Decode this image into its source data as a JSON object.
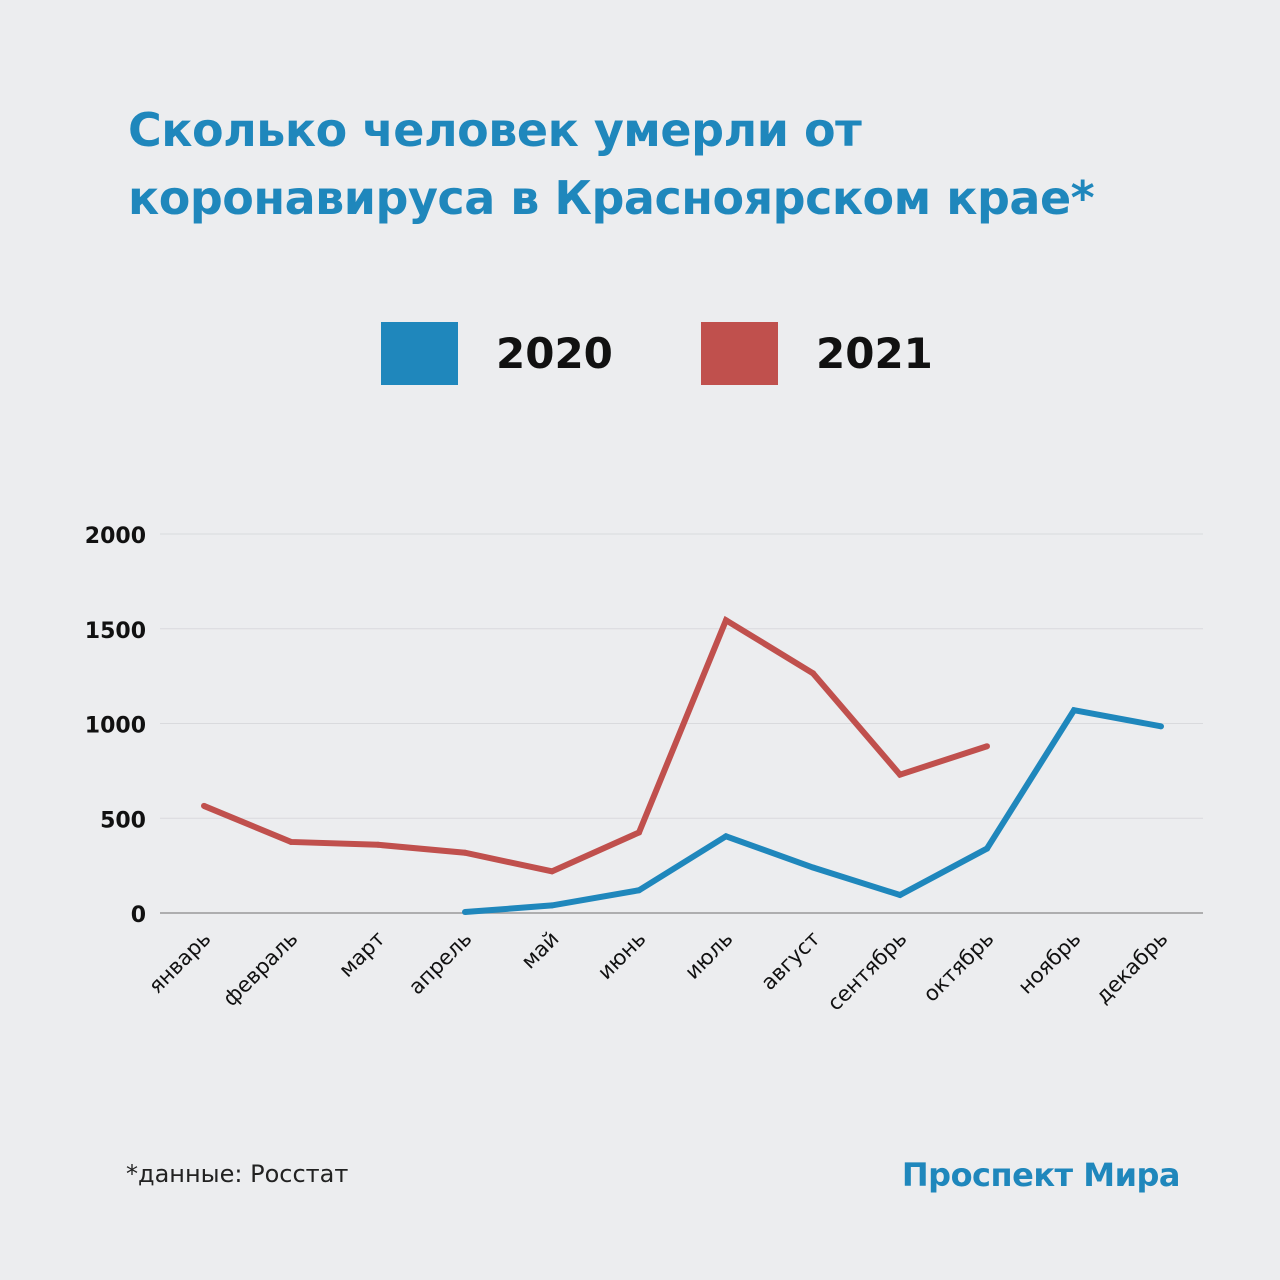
{
  "title": "Сколько человек умерли от коронавируса в Красноярском крае*",
  "footnote": "*данные: Росстат",
  "brand": "Проспект Мира",
  "chart_data": {
    "type": "line",
    "categories": [
      "январь",
      "февраль",
      "март",
      "апрель",
      "май",
      "июнь",
      "июль",
      "август",
      "сентябрь",
      "октябрь",
      "ноябрь",
      "декабрь"
    ],
    "series": [
      {
        "name": "2020",
        "color": "#1f87bc",
        "values": [
          null,
          null,
          null,
          5,
          40,
          120,
          405,
          240,
          95,
          340,
          1070,
          985
        ]
      },
      {
        "name": "2021",
        "color": "#c0504d",
        "values": [
          565,
          375,
          360,
          318,
          220,
          425,
          1545,
          1265,
          730,
          880,
          null,
          null
        ]
      }
    ],
    "yticks": [
      0,
      500,
      1000,
      1500,
      2000
    ],
    "ylim": [
      0,
      2000
    ],
    "grid": true,
    "legend_position": "top-center"
  }
}
